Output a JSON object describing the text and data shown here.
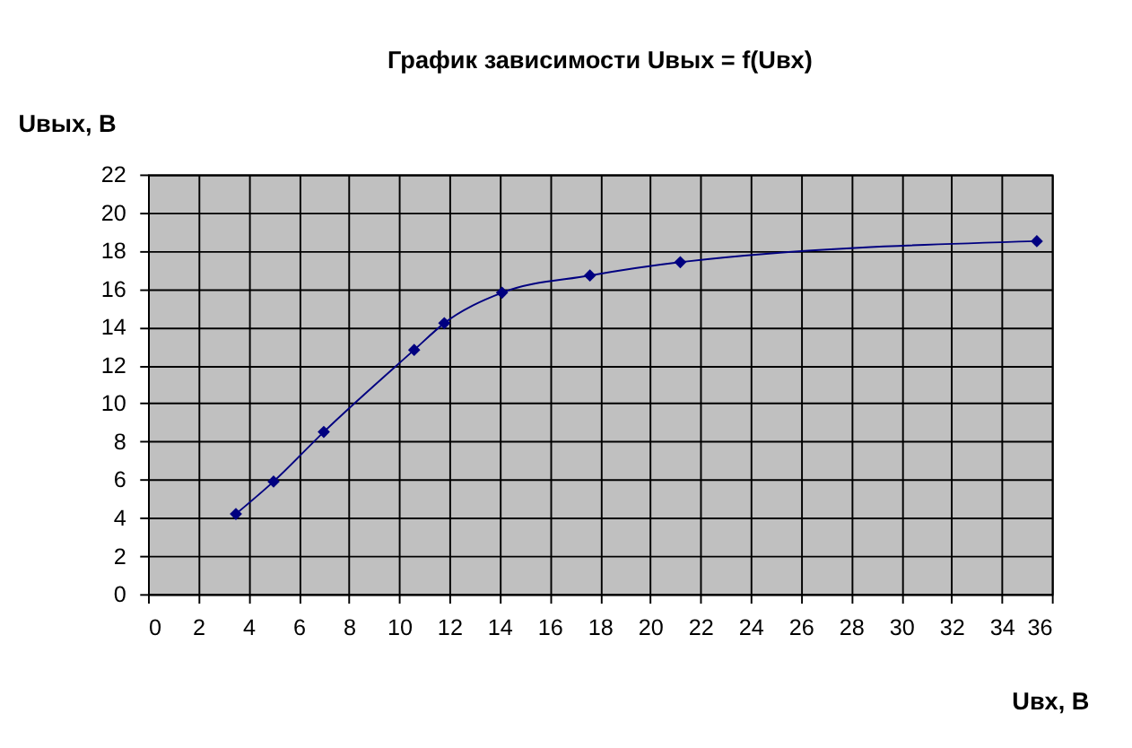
{
  "chart_data": {
    "type": "line",
    "title": "График зависимости Uвых = f(Uвх)",
    "xlabel": "Uвх, В",
    "ylabel": "Uвых, В",
    "x": [
      3.5,
      5.0,
      7.0,
      10.6,
      11.8,
      14.1,
      17.6,
      21.2,
      35.4
    ],
    "series": [
      {
        "color": "#000080",
        "values": [
          4.2,
          5.9,
          8.5,
          12.8,
          14.2,
          15.8,
          16.7,
          17.4,
          18.5
        ]
      }
    ],
    "xlim": [
      0,
      36
    ],
    "xticks": [
      0,
      2,
      4,
      6,
      8,
      10,
      12,
      14,
      16,
      18,
      20,
      22,
      24,
      26,
      28,
      30,
      32,
      34,
      36
    ],
    "ylim": [
      0,
      22
    ],
    "yticks": [
      0,
      2,
      4,
      6,
      8,
      10,
      12,
      14,
      16,
      18,
      20,
      22
    ],
    "grid": true,
    "marker": "diamond",
    "line_style": "solid"
  }
}
